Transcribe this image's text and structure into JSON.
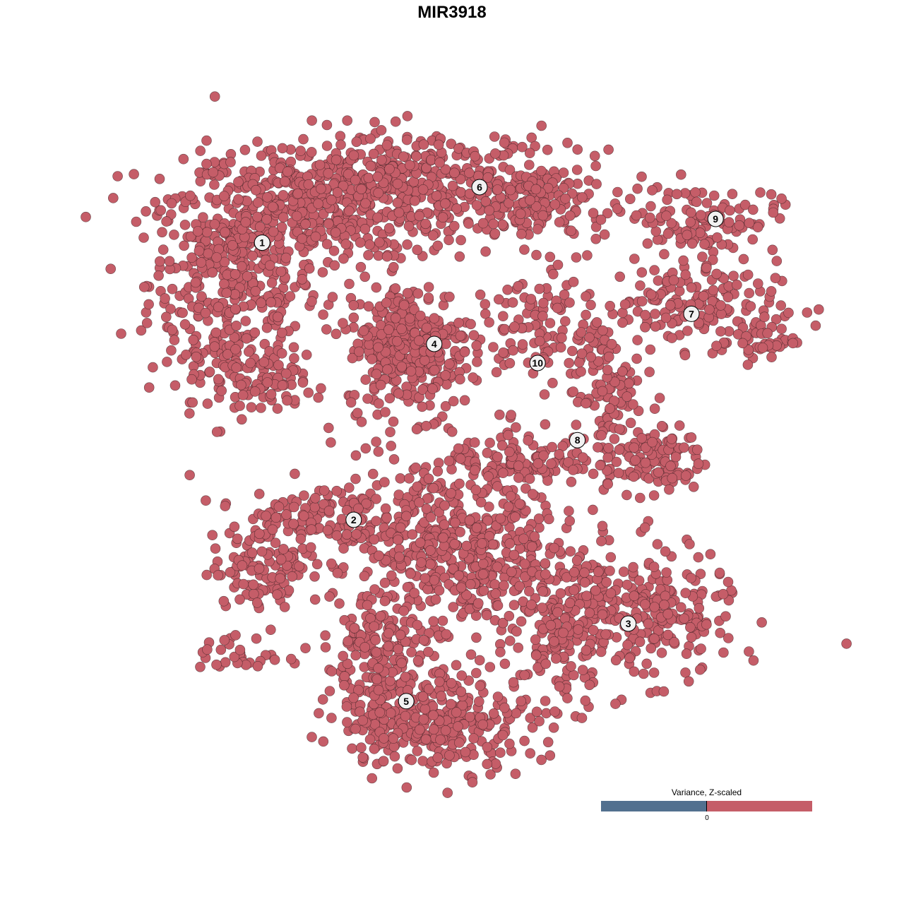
{
  "chart_data": {
    "type": "scatter",
    "title": "MIR3918",
    "xlabel": "",
    "ylabel": "",
    "grid": false,
    "axes_visible": false,
    "point_color": "#c55d68",
    "point_edge_color": "#3a1f22",
    "clusters": [
      {
        "label": "1",
        "label_pos": [
          -22.4,
          24.7
        ],
        "blobs": [
          {
            "center": [
              -25.8,
              20
            ],
            "spread": [
              5,
              6.7
            ],
            "n": 420
          },
          {
            "center": [
              -15.8,
              29.2
            ],
            "spread": [
              8.3,
              3.3
            ],
            "n": 380
          },
          {
            "center": [
              -23.3,
              8.3
            ],
            "spread": [
              3.3,
              2
            ],
            "n": 90
          }
        ]
      },
      {
        "label": "6",
        "label_pos": [
          3.25,
          31.25
        ],
        "blobs": [
          {
            "center": [
              -3.3,
              31.7
            ],
            "spread": [
              8.3,
              3.3
            ],
            "n": 330
          },
          {
            "center": [
              10,
              29.2
            ],
            "spread": [
              4.2,
              2.5
            ],
            "n": 140
          }
        ]
      },
      {
        "label": "9",
        "label_pos": [
          31.1,
          27.5
        ],
        "blobs": [
          {
            "center": [
              29.2,
              27.5
            ],
            "spread": [
              4.6,
              2
            ],
            "n": 110
          }
        ]
      },
      {
        "label": "7",
        "label_pos": [
          28.25,
          16.3
        ],
        "blobs": [
          {
            "center": [
              26.7,
              17.5
            ],
            "spread": [
              5.8,
              2.5
            ],
            "n": 160
          },
          {
            "center": [
              35.8,
              13.3
            ],
            "spread": [
              2.5,
              1.25
            ],
            "n": 50
          }
        ]
      },
      {
        "label": "4",
        "label_pos": [
          -2.1,
          12.75
        ],
        "blobs": [
          {
            "center": [
              -5,
              12.5
            ],
            "spread": [
              3.75,
              3.75
            ],
            "n": 330
          }
        ]
      },
      {
        "label": "10",
        "label_pos": [
          10.1,
          10.5
        ],
        "blobs": [
          {
            "center": [
              10,
              14.2
            ],
            "spread": [
              3.75,
              3.3
            ],
            "n": 100
          }
        ]
      },
      {
        "label": "8",
        "label_pos": [
          14.8,
          1.4
        ],
        "blobs": [
          {
            "center": [
              18.3,
              6.7
            ],
            "spread": [
              2,
              3.75
            ],
            "n": 90
          },
          {
            "center": [
              23.3,
              -0.8
            ],
            "spread": [
              3.3,
              2
            ],
            "n": 110
          },
          {
            "center": [
              8.3,
              -0.8
            ],
            "spread": [
              4.2,
              1.7
            ],
            "n": 90
          }
        ]
      },
      {
        "label": "2",
        "label_pos": [
          -11.6,
          -8
        ],
        "blobs": [
          {
            "center": [
              -21.7,
              -13.3
            ],
            "spread": [
              3.3,
              2.5
            ],
            "n": 120
          },
          {
            "center": [
              -16.7,
              -7.5
            ],
            "spread": [
              4.2,
              2
            ],
            "n": 110
          },
          {
            "center": [
              -25,
              -24.2
            ],
            "spread": [
              2.5,
              1.25
            ],
            "n": 30
          }
        ]
      },
      {
        "label": "3",
        "label_pos": [
          20.8,
          -20.25
        ],
        "blobs": [
          {
            "center": [
              0.8,
              -11.7
            ],
            "spread": [
              7.5,
              5.8
            ],
            "n": 600
          },
          {
            "center": [
              21.7,
              -19.2
            ],
            "spread": [
              5.8,
              3.75
            ],
            "n": 280
          },
          {
            "center": [
              13.3,
              -21.7
            ],
            "spread": [
              2.5,
              4.2
            ],
            "n": 120
          }
        ]
      },
      {
        "label": "5",
        "label_pos": [
          -5.4,
          -29.4
        ],
        "blobs": [
          {
            "center": [
              -1.7,
              -31.7
            ],
            "spread": [
              5.8,
              2.9
            ],
            "n": 320
          },
          {
            "center": [
              -9.2,
              -25
            ],
            "spread": [
              2.9,
              3.75
            ],
            "n": 150
          }
        ]
      }
    ],
    "legend": {
      "title": "Variance, Z-scaled",
      "tick": "0",
      "low_color": "#52708f",
      "high_color": "#c55d68",
      "placement": "bottom-right"
    }
  }
}
